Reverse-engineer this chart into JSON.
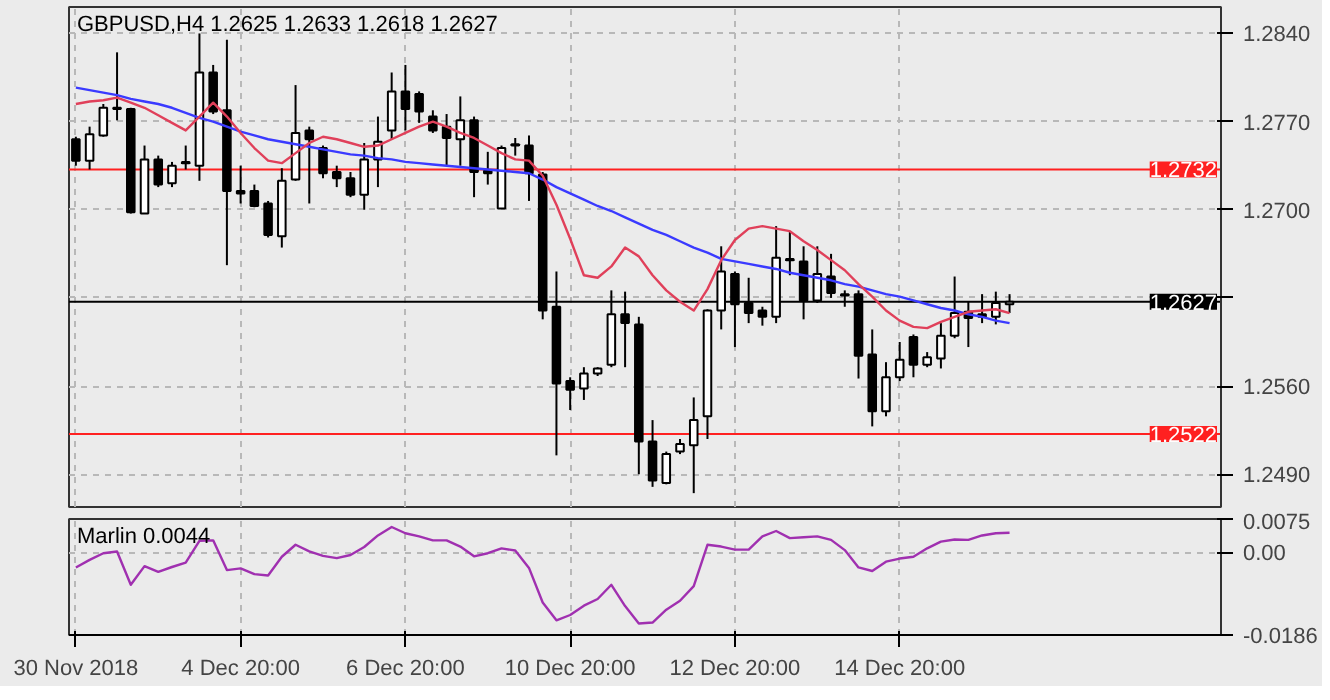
{
  "chart_data": [
    {
      "type": "candlestick",
      "title": "GBPUSD,H4  1.2625 1.2633 1.2618 1.2627",
      "categories": [
        null,
        null,
        null,
        null,
        null,
        null,
        null,
        null,
        null,
        null,
        null,
        null,
        null,
        null,
        null,
        null,
        null,
        null,
        null,
        null,
        null,
        null,
        null,
        null,
        null,
        null,
        null,
        null,
        null,
        null,
        null,
        null,
        null,
        null,
        null,
        null,
        null,
        null,
        null,
        null,
        null,
        null,
        null,
        null,
        null,
        null,
        null,
        null,
        null,
        null,
        null,
        null,
        null,
        null,
        null,
        null,
        null,
        null,
        null,
        null,
        null,
        null,
        null,
        null,
        null,
        null,
        null,
        null,
        null
      ],
      "ohlc": [
        [
          1.2756,
          1.2758,
          1.2735,
          1.2739
        ],
        [
          1.2739,
          1.2766,
          1.2732,
          1.276
        ],
        [
          1.2759,
          1.2784,
          1.2758,
          1.2781
        ],
        [
          1.278,
          1.2825,
          1.2771,
          1.2781
        ],
        [
          1.278,
          1.2781,
          1.2697,
          1.2698
        ],
        [
          1.2697,
          1.2751,
          1.2697,
          1.274
        ],
        [
          1.274,
          1.2743,
          1.2718,
          1.272
        ],
        [
          1.2721,
          1.2738,
          1.2718,
          1.2735
        ],
        [
          1.2737,
          1.2751,
          1.2732,
          1.2738
        ],
        [
          1.2735,
          1.284,
          1.2723,
          1.2809
        ],
        [
          1.2809,
          1.2815,
          1.2776,
          1.2778
        ],
        [
          1.2779,
          1.2835,
          1.2656,
          1.2715
        ],
        [
          1.2715,
          1.2735,
          1.2705,
          1.2713
        ],
        [
          1.2715,
          1.272,
          1.2702,
          1.2703
        ],
        [
          1.2705,
          1.2707,
          1.2678,
          1.268
        ],
        [
          1.2679,
          1.2733,
          1.267,
          1.2723
        ],
        [
          1.2724,
          1.2799,
          1.2723,
          1.2761
        ],
        [
          1.2763,
          1.2766,
          1.2705,
          1.2756
        ],
        [
          1.2749,
          1.2751,
          1.2725,
          1.2729
        ],
        [
          1.273,
          1.2735,
          1.2718,
          1.2725
        ],
        [
          1.2725,
          1.273,
          1.271,
          1.2712
        ],
        [
          1.2712,
          1.2753,
          1.27,
          1.274
        ],
        [
          1.274,
          1.2774,
          1.2718,
          1.2754
        ],
        [
          1.2763,
          1.2809,
          1.2756,
          1.2794
        ],
        [
          1.2794,
          1.2815,
          1.2763,
          1.278
        ],
        [
          1.2792,
          1.2794,
          1.2769,
          1.2778
        ],
        [
          1.2774,
          1.2779,
          1.2761,
          1.2763
        ],
        [
          1.2766,
          1.2776,
          1.2735,
          1.2757
        ],
        [
          1.2756,
          1.279,
          1.2735,
          1.2771
        ],
        [
          1.2771,
          1.2774,
          1.271,
          1.273
        ],
        [
          1.2731,
          1.2746,
          1.272,
          1.2729
        ],
        [
          1.2701,
          1.2751,
          1.2701,
          1.2749
        ],
        [
          1.2752,
          1.2757,
          1.2743,
          1.2751
        ],
        [
          1.2751,
          1.2759,
          1.2707,
          1.2729
        ],
        [
          1.2728,
          1.273,
          1.2613,
          1.262
        ],
        [
          1.2623,
          1.2651,
          1.2505,
          1.2562
        ],
        [
          1.2564,
          1.2567,
          1.2541,
          1.2557
        ],
        [
          1.2558,
          1.2575,
          1.2549,
          1.257
        ],
        [
          1.257,
          1.2575,
          1.2568,
          1.2574
        ],
        [
          1.2577,
          1.2636,
          1.2575,
          1.2617
        ],
        [
          1.2617,
          1.2635,
          1.2575,
          1.261
        ],
        [
          1.2609,
          1.2615,
          1.249,
          1.2516
        ],
        [
          1.2516,
          1.2533,
          1.248,
          1.2485
        ],
        [
          1.2483,
          1.2508,
          1.2482,
          1.2506
        ],
        [
          1.2508,
          1.2518,
          1.2506,
          1.2514
        ],
        [
          1.2513,
          1.2551,
          1.2475,
          1.2533
        ],
        [
          1.2536,
          1.2621,
          1.2518,
          1.262
        ],
        [
          1.262,
          1.2671,
          1.2605,
          1.2651
        ],
        [
          1.2649,
          1.2651,
          1.2591,
          1.2625
        ],
        [
          1.2626,
          1.2646,
          1.261,
          1.2618
        ],
        [
          1.262,
          1.2623,
          1.2608,
          1.2615
        ],
        [
          1.2615,
          1.2687,
          1.261,
          1.2662
        ],
        [
          1.2661,
          1.2683,
          1.2648,
          1.266
        ],
        [
          1.2659,
          1.2671,
          1.2613,
          1.2628
        ],
        [
          1.2628,
          1.2671,
          1.2626,
          1.2649
        ],
        [
          1.2647,
          1.2665,
          1.263,
          1.2634
        ],
        [
          1.2633,
          1.2636,
          1.2623,
          1.2632
        ],
        [
          1.2633,
          1.2636,
          1.2566,
          1.2584
        ],
        [
          1.2585,
          1.2605,
          1.2528,
          1.254
        ],
        [
          1.254,
          1.2579,
          1.2536,
          1.2567
        ],
        [
          1.2567,
          1.2595,
          1.2564,
          1.2581
        ],
        [
          1.2599,
          1.2601,
          1.2567,
          1.2577
        ],
        [
          1.2577,
          1.2587,
          1.2575,
          1.2583
        ],
        [
          1.2582,
          1.261,
          1.2574,
          1.26
        ],
        [
          1.26,
          1.2647,
          1.2598,
          1.2618
        ],
        [
          1.2619,
          1.2627,
          1.2591,
          1.2614
        ],
        [
          1.2617,
          1.2633,
          1.261,
          1.2615
        ],
        [
          1.2615,
          1.2635,
          1.2609,
          1.2626
        ],
        [
          1.2625,
          1.2633,
          1.2618,
          1.2627
        ]
      ],
      "series": [
        {
          "type": "line",
          "color": "#3a3aff",
          "values": [
            1.2797,
            1.2795,
            1.2793,
            1.2791,
            1.2788,
            1.2786,
            1.2784,
            1.2781,
            1.2777,
            1.2773,
            1.277,
            1.2766,
            1.2762,
            1.2759,
            1.2756,
            1.2754,
            1.2752,
            1.275,
            1.2748,
            1.2746,
            1.2744,
            1.2743,
            1.2741,
            1.274,
            1.2738,
            1.2737,
            1.2736,
            1.2735,
            1.2734,
            1.2733,
            1.2732,
            1.2731,
            1.273,
            1.2729,
            1.2724,
            1.2718,
            1.2713,
            1.2708,
            1.2703,
            1.2699,
            1.2694,
            1.2689,
            1.2684,
            1.268,
            1.2675,
            1.267,
            1.2666,
            1.2661,
            1.2659,
            1.2657,
            1.2655,
            1.2653,
            1.265,
            1.2648,
            1.2646,
            1.2644,
            1.2641,
            1.2639,
            1.2636,
            1.2633,
            1.2631,
            1.2628,
            1.2625,
            1.2622,
            1.262,
            1.2617,
            1.2615,
            1.2612,
            1.261
          ]
        },
        {
          "type": "line",
          "color": "#e0405a",
          "values": [
            1.2784,
            1.2786,
            1.2787,
            1.2789,
            1.2785,
            1.2781,
            1.2775,
            1.2769,
            1.2763,
            1.2774,
            1.2785,
            1.2774,
            1.2761,
            1.2749,
            1.2739,
            1.2737,
            1.2745,
            1.2753,
            1.2758,
            1.2756,
            1.2753,
            1.275,
            1.2751,
            1.2756,
            1.2761,
            1.2766,
            1.277,
            1.2766,
            1.2761,
            1.2757,
            1.2751,
            1.2745,
            1.274,
            1.2739,
            1.2727,
            1.2704,
            1.2677,
            1.2648,
            1.2646,
            1.2655,
            1.267,
            1.2663,
            1.2648,
            1.2636,
            1.2627,
            1.262,
            1.2637,
            1.266,
            1.2676,
            1.2685,
            1.2687,
            1.2685,
            1.2683,
            1.2675,
            1.2668,
            1.266,
            1.2652,
            1.2641,
            1.2631,
            1.262,
            1.2612,
            1.2607,
            1.2606,
            1.2611,
            1.2615,
            1.2619,
            1.262,
            1.2621,
            1.2618
          ]
        }
      ],
      "ylim": [
        1.2464,
        1.2861
      ],
      "yticks": [
        {
          "value": 1.249,
          "label": "1.2490"
        },
        {
          "value": 1.256,
          "label": "1.2560"
        },
        {
          "value": 1.263,
          "label": null
        },
        {
          "value": 1.27,
          "label": "1.2700"
        },
        {
          "value": 1.277,
          "label": "1.2770"
        },
        {
          "value": 1.284,
          "label": "1.2840"
        }
      ],
      "ref_lines": [
        {
          "axis": "y",
          "value": 1.2732,
          "label": "1.2732",
          "color": "#ff2020"
        },
        {
          "axis": "y",
          "value": 1.2522,
          "label": "1.2522",
          "color": "#ff2020"
        },
        {
          "axis": "y",
          "value": 1.2627,
          "label": "1.2627",
          "color": "#000000"
        }
      ],
      "grid": true,
      "tick_labels": "y"
    },
    {
      "type": "line",
      "title": "Marlin 0.0044",
      "categories": [
        "30 Nov 2018",
        null,
        null,
        null,
        null,
        null,
        null,
        null,
        null,
        null,
        null,
        null,
        "4 Dec 20:00",
        null,
        null,
        null,
        null,
        null,
        null,
        null,
        null,
        null,
        null,
        null,
        "6 Dec 20:00",
        null,
        null,
        null,
        null,
        null,
        null,
        null,
        null,
        null,
        null,
        null,
        "10 Dec 20:00",
        null,
        null,
        null,
        null,
        null,
        null,
        null,
        null,
        null,
        null,
        null,
        "12 Dec 20:00",
        null,
        null,
        null,
        null,
        null,
        null,
        null,
        null,
        null,
        null,
        null,
        "14 Dec 20:00",
        null,
        null,
        null,
        null,
        null,
        null,
        null,
        null
      ],
      "series": [
        {
          "color": "#a030b0",
          "values": [
            -0.0034,
            -0.0017,
            -0.0002,
            0.0002,
            -0.0073,
            -0.0031,
            -0.0044,
            -0.0033,
            -0.0023,
            0.0026,
            0.0027,
            -0.004,
            -0.0036,
            -0.0049,
            -0.0052,
            -0.001,
            0.0017,
            0.0002,
            -0.0008,
            -0.0013,
            -0.0006,
            0.0012,
            0.0038,
            0.0057,
            0.0043,
            0.0036,
            0.0027,
            0.0027,
            0.0013,
            -0.0009,
            -0.0002,
            0.0009,
            0.0004,
            -0.0035,
            -0.0113,
            -0.0153,
            -0.0141,
            -0.012,
            -0.0105,
            -0.0073,
            -0.0121,
            -0.016,
            -0.0158,
            -0.0129,
            -0.0109,
            -0.0076,
            0.0017,
            0.0013,
            0.0006,
            0.0006,
            0.0036,
            0.0048,
            0.0032,
            0.0034,
            0.0036,
            0.0028,
            0.0005,
            -0.0034,
            -0.0042,
            -0.0021,
            -0.0014,
            -0.001,
            0.0009,
            0.0024,
            0.0029,
            0.0028,
            0.0038,
            0.0043,
            0.0044
          ]
        }
      ],
      "ylim": [
        -0.0186,
        0.0075
      ],
      "yticks": [
        {
          "value": -0.0186,
          "label": "-0.0186"
        },
        {
          "value": 0,
          "label": "0.00"
        },
        {
          "value": 0.0075,
          "label": "0.0075"
        }
      ],
      "grid": true
    }
  ]
}
